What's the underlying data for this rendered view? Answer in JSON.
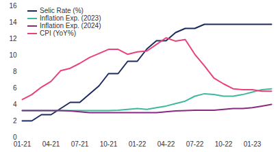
{
  "chart_data": {
    "type": "line",
    "categories": [
      "01-21",
      null,
      null,
      "04-21",
      null,
      null,
      "07-21",
      null,
      null,
      "10-21",
      null,
      null,
      "01-22",
      null,
      null,
      "04-22",
      null,
      null,
      "07-22",
      null,
      null,
      "10-22",
      null,
      null,
      "01-23",
      null,
      null
    ],
    "series": [
      {
        "name": "Selic Rate (%)",
        "color": "#1b2a5e",
        "values": [
          2.0,
          2.0,
          2.75,
          2.75,
          3.5,
          4.25,
          4.25,
          5.25,
          6.25,
          7.75,
          7.75,
          9.25,
          9.25,
          10.75,
          11.75,
          11.75,
          12.75,
          13.25,
          13.25,
          13.75,
          13.75,
          13.75,
          13.75,
          13.75,
          13.75,
          13.75,
          13.75
        ]
      },
      {
        "name": "Inflation Exp. (2023)",
        "color": "#3fb8a0",
        "values": [
          3.25,
          3.25,
          3.25,
          3.25,
          3.25,
          3.25,
          3.25,
          3.25,
          3.25,
          3.25,
          3.3,
          3.4,
          3.5,
          3.4,
          3.6,
          3.8,
          4.1,
          4.4,
          5.0,
          5.3,
          5.2,
          5.0,
          5.0,
          5.2,
          5.5,
          5.8,
          5.9
        ]
      },
      {
        "name": "Inflation Exp. (2024)",
        "color": "#8a2a7e",
        "values": [
          3.25,
          3.25,
          3.25,
          3.25,
          3.25,
          3.2,
          3.1,
          3.0,
          3.0,
          3.0,
          3.0,
          3.0,
          3.0,
          3.0,
          3.0,
          3.1,
          3.2,
          3.25,
          3.3,
          3.3,
          3.3,
          3.4,
          3.5,
          3.5,
          3.6,
          3.8,
          4.0
        ]
      },
      {
        "name": "CPI (YoY%)",
        "color": "#e8417b",
        "values": [
          4.6,
          5.2,
          6.1,
          6.8,
          8.1,
          8.4,
          9.0,
          9.7,
          10.2,
          10.7,
          10.7,
          10.1,
          10.4,
          10.5,
          11.3,
          12.1,
          11.7,
          11.9,
          10.1,
          8.7,
          7.2,
          6.5,
          5.9,
          5.8,
          5.8,
          5.6,
          5.6
        ]
      }
    ],
    "ylim": [
      0,
      16
    ],
    "yticks": [
      0,
      2,
      4,
      6,
      8,
      10,
      12,
      14,
      16
    ],
    "grid": false,
    "legend": "top-left"
  }
}
